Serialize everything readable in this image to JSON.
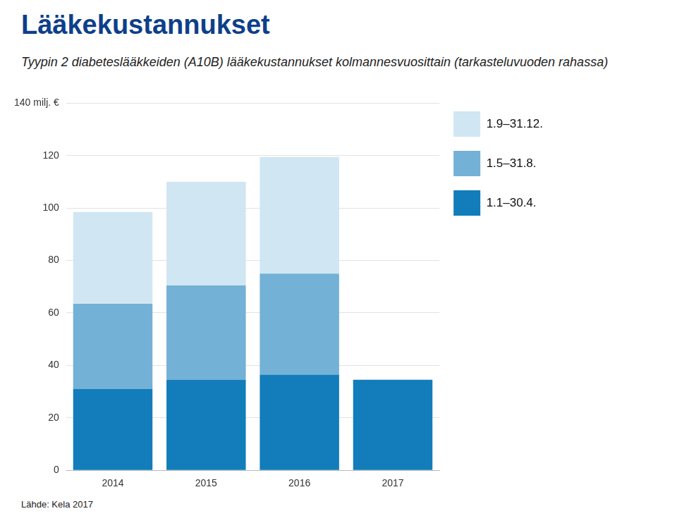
{
  "chart_data": {
    "type": "bar",
    "title": "Lääkekustannukset",
    "subtitle": "Tyypin 2 diabeteslääkkeiden (A10B) lääkekustannukset kolmannesvuosittain (tarkasteluvuoden rahassa)",
    "source": "Lähde: Kela 2017",
    "categories": [
      "2014",
      "2015",
      "2016",
      "2017"
    ],
    "series": [
      {
        "name": "1.1–30.4.",
        "color": "#127dba",
        "values": [
          31,
          34.5,
          36.5,
          34.5
        ]
      },
      {
        "name": "1.5–31.8.",
        "color": "#73b1d6",
        "values": [
          32.5,
          36,
          38.5,
          null
        ]
      },
      {
        "name": "1.9–31.12.",
        "color": "#d0e6f2",
        "values": [
          35,
          39.5,
          44.5,
          null
        ]
      }
    ],
    "stacked": true,
    "ylim": [
      0,
      140
    ],
    "yticks": [
      0,
      20,
      40,
      60,
      80,
      100,
      120,
      {
        "value": 140,
        "label": "140 milj. €"
      }
    ],
    "grid": true,
    "legend": "right",
    "data_labels": false
  }
}
